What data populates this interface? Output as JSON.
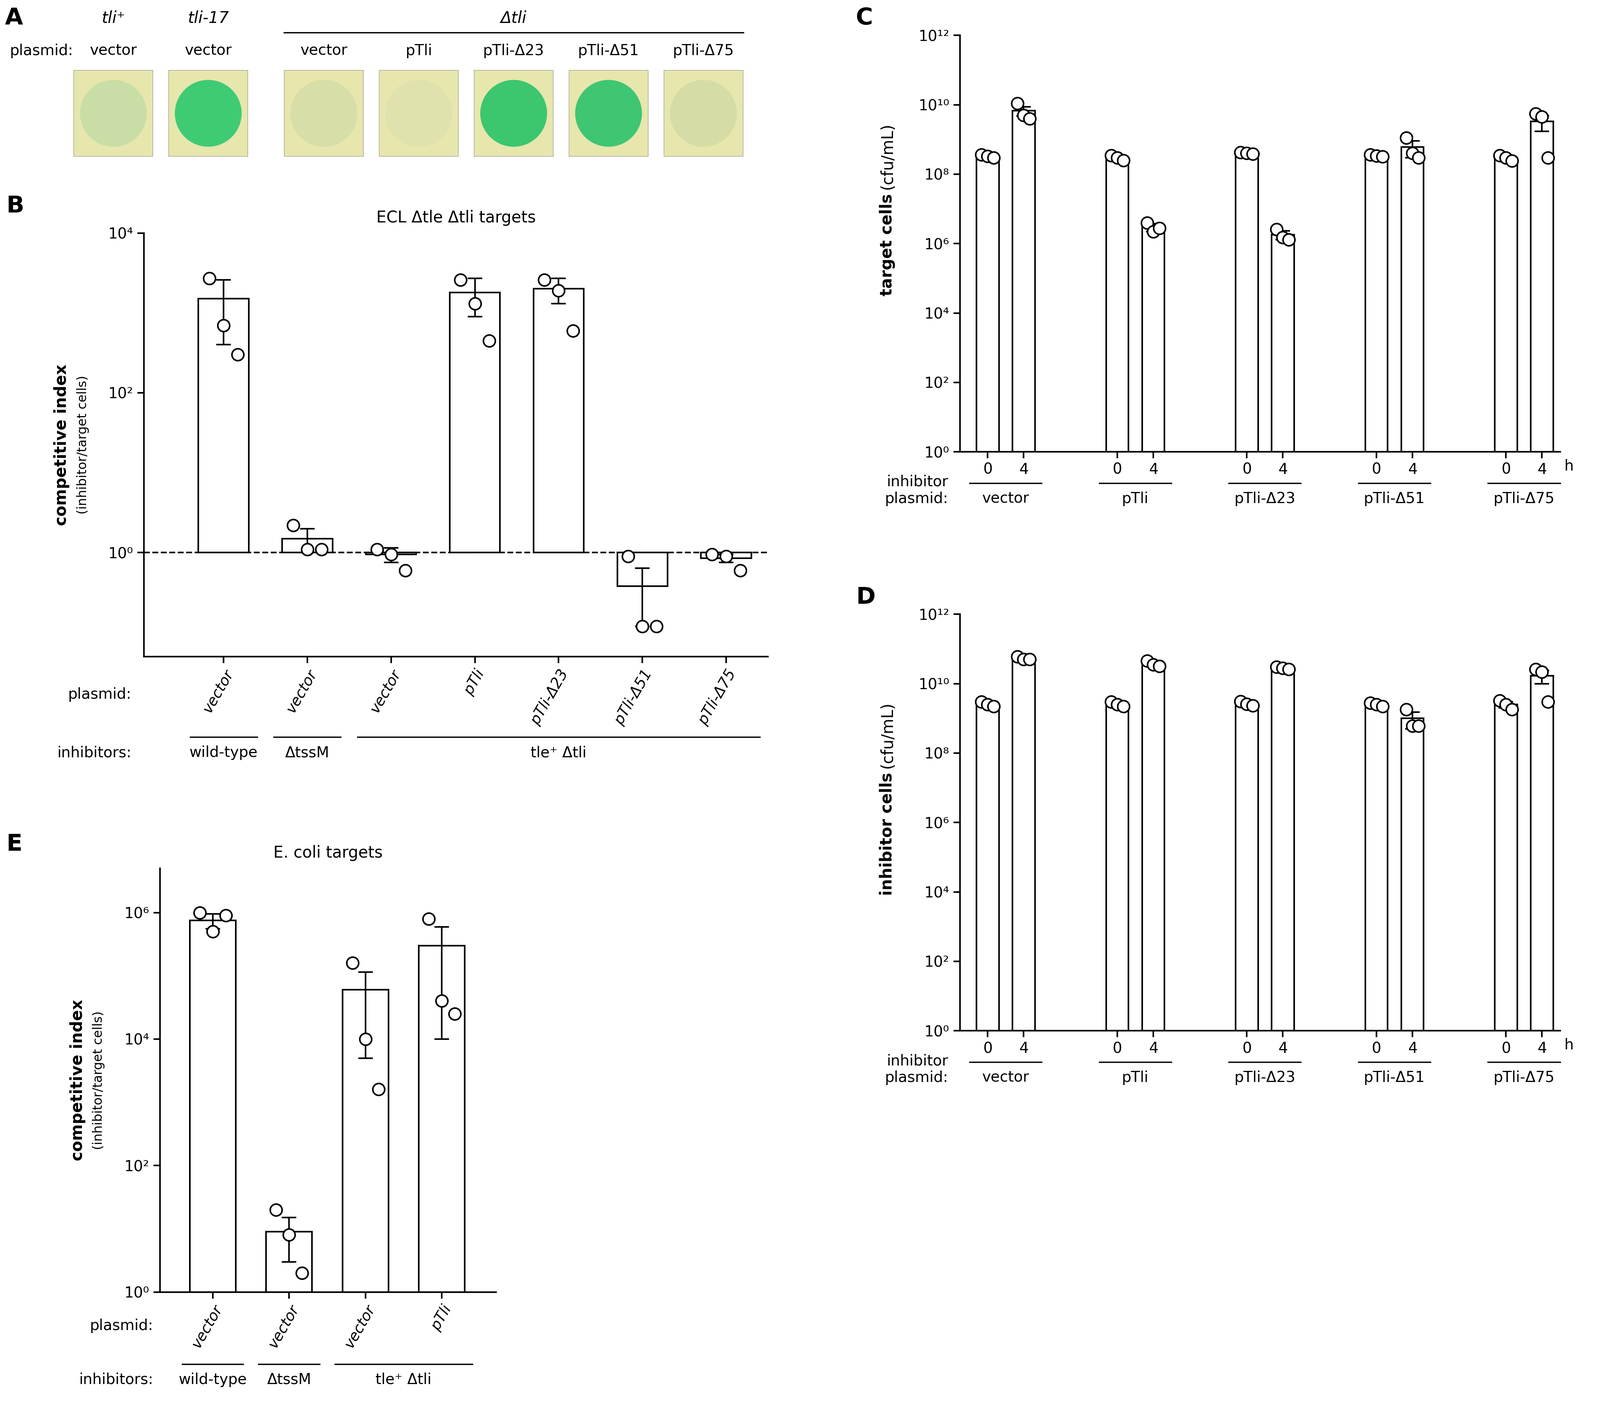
{
  "panel_a": {
    "panel": "A",
    "row_label": "plasmid:",
    "strains": [
      {
        "name": "tli⁺",
        "spots": [
          {
            "plasmid": "vector",
            "color": "#c9dea6"
          }
        ]
      },
      {
        "name": "tli-17",
        "spots": [
          {
            "plasmid": "vector",
            "color": "#3fcb74"
          }
        ]
      },
      {
        "name": "Δtli",
        "spots": [
          {
            "plasmid": "vector",
            "color": "#d7dea8"
          },
          {
            "plasmid": "pTli",
            "color": "#dfe2ad"
          },
          {
            "plasmid": "pTli-Δ23",
            "color": "#3cc66e"
          },
          {
            "plasmid": "pTli-Δ51",
            "color": "#3fc672"
          },
          {
            "plasmid": "pTli-Δ75",
            "color": "#d5dca5"
          }
        ]
      }
    ]
  },
  "chart_data": [
    {
      "type": "bar",
      "panel": "B",
      "title": "ECL Δtle Δtli targets",
      "y_label": "competitive index",
      "y_sublabel": "(inhibitor/target cells)",
      "log": "y",
      "ylim": [
        0.05,
        10000
      ],
      "yticks": [
        {
          "value": 1,
          "label": "10⁰"
        },
        {
          "value": 100,
          "label": "10²"
        },
        {
          "value": 10000,
          "label": "10⁴"
        }
      ],
      "baseline": 1,
      "line_style": "dashed",
      "color": "#ffffff",
      "category_row_label": "plasmid:",
      "group_row_label": "inhibitors:",
      "groups": [
        {
          "label": "wild-type",
          "categories": [
            "vector"
          ],
          "values": [
            1500
          ],
          "errors": [
            1100
          ],
          "points": [
            [
              2700,
              700,
              300
            ]
          ]
        },
        {
          "label": "ΔtssM",
          "categories": [
            "vector"
          ],
          "values": [
            1.5
          ],
          "errors": [
            0.5
          ],
          "points": [
            [
              2.2,
              1.1,
              1.1
            ]
          ]
        },
        {
          "label": "tle⁺ Δtli",
          "categories": [
            "vector",
            "pTli",
            "pTli-Δ23",
            "pTli-Δ51",
            "pTli-Δ75"
          ],
          "values": [
            0.95,
            1800,
            2000,
            0.38,
            0.85
          ],
          "errors": [
            0.2,
            900,
            700,
            0.26,
            0.1
          ],
          "points": [
            [
              1.1,
              0.95,
              0.6
            ],
            [
              2600,
              1300,
              450
            ],
            [
              2600,
              1900,
              600
            ],
            [
              0.9,
              0.12,
              0.12
            ],
            [
              0.95,
              0.9,
              0.6
            ]
          ]
        }
      ]
    },
    {
      "type": "bar",
      "panel": "C",
      "y_label": "target cells",
      "y_sublabel": "(cfu/mL)",
      "log": "y",
      "ylim": [
        1,
        1000000000000
      ],
      "yticks": [
        {
          "value": 1,
          "label": "10⁰"
        },
        {
          "value": 100,
          "label": "10²"
        },
        {
          "value": 10000,
          "label": "10⁴"
        },
        {
          "value": 1000000,
          "label": "10⁶"
        },
        {
          "value": 100000000,
          "label": "10⁸"
        },
        {
          "value": 10000000000,
          "label": "10¹⁰"
        },
        {
          "value": 1000000000000,
          "label": "10¹²"
        }
      ],
      "baseline": 1,
      "color": "#ffffff",
      "x_unit": "h",
      "category_row_label": "inhibitor\nplasmid:",
      "groups": [
        {
          "label": "vector",
          "categories": [
            "0",
            "4"
          ],
          "values": [
            330000000,
            6700000000
          ],
          "errors": [
            30000000,
            2000000000
          ],
          "points": [
            [
              360000000,
              330000000,
              300000000
            ],
            [
              11000000000,
              5000000000,
              4000000000
            ]
          ]
        },
        {
          "label": "pTli",
          "categories": [
            "0",
            "4"
          ],
          "values": [
            300000000,
            3000000
          ],
          "errors": [
            50000000,
            800000
          ],
          "points": [
            [
              350000000,
              300000000,
              250000000
            ],
            [
              4000000,
              2200000,
              2800000
            ]
          ]
        },
        {
          "label": "pTli-Δ23",
          "categories": [
            "0",
            "4"
          ],
          "values": [
            400000000,
            1800000
          ],
          "errors": [
            20000000,
            500000
          ],
          "points": [
            [
              420000000,
              400000000,
              380000000
            ],
            [
              2600000,
              1500000,
              1300000
            ]
          ]
        },
        {
          "label": "pTli-Δ51",
          "categories": [
            "0",
            "4"
          ],
          "values": [
            340000000,
            600000000
          ],
          "errors": [
            20000000,
            300000000
          ],
          "points": [
            [
              360000000,
              340000000,
              320000000
            ],
            [
              1100000000,
              400000000,
              300000000
            ]
          ]
        },
        {
          "label": "pTli-Δ75",
          "categories": [
            "0",
            "4"
          ],
          "values": [
            300000000,
            3300000000
          ],
          "errors": [
            40000000,
            1600000000
          ],
          "points": [
            [
              350000000,
              300000000,
              240000000
            ],
            [
              5500000000,
              4500000000,
              300000000
            ]
          ]
        }
      ]
    },
    {
      "type": "bar",
      "panel": "D",
      "y_label": "inhibitor cells",
      "y_sublabel": "(cfu/mL)",
      "log": "y",
      "ylim": [
        1,
        1000000000000
      ],
      "yticks": [
        {
          "value": 1,
          "label": "10⁰"
        },
        {
          "value": 100,
          "label": "10²"
        },
        {
          "value": 10000,
          "label": "10⁴"
        },
        {
          "value": 1000000,
          "label": "10⁶"
        },
        {
          "value": 100000000,
          "label": "10⁸"
        },
        {
          "value": 10000000000,
          "label": "10¹⁰"
        },
        {
          "value": 1000000000000,
          "label": "10¹²"
        }
      ],
      "baseline": 1,
      "color": "#ffffff",
      "x_unit": "h",
      "category_row_label": "inhibitor\nplasmid:",
      "groups": [
        {
          "label": "vector",
          "categories": [
            "0",
            "4"
          ],
          "values": [
            2600000000,
            53000000000
          ],
          "errors": [
            400000000,
            4000000000
          ],
          "points": [
            [
              3000000000,
              2500000000,
              2200000000
            ],
            [
              60000000000,
              50000000000,
              50000000000
            ]
          ]
        },
        {
          "label": "pTli",
          "categories": [
            "0",
            "4"
          ],
          "values": [
            2600000000,
            37000000000
          ],
          "errors": [
            400000000,
            5000000000
          ],
          "points": [
            [
              3000000000,
              2500000000,
              2200000000
            ],
            [
              45000000000,
              35000000000,
              32000000000
            ]
          ]
        },
        {
          "label": "pTli-Δ23",
          "categories": [
            "0",
            "4"
          ],
          "values": [
            2700000000,
            28000000000
          ],
          "errors": [
            400000000,
            2000000000
          ],
          "points": [
            [
              3100000000,
              2600000000,
              2300000000
            ],
            [
              30000000000,
              28000000000,
              26000000000
            ]
          ]
        },
        {
          "label": "pTli-Δ51",
          "categories": [
            "0",
            "4"
          ],
          "values": [
            2500000000,
            1000000000
          ],
          "errors": [
            300000000,
            500000000
          ],
          "points": [
            [
              2800000000,
              2500000000,
              2200000000
            ],
            [
              1800000000,
              600000000,
              600000000
            ]
          ]
        },
        {
          "label": "pTli-Δ75",
          "categories": [
            "0",
            "4"
          ],
          "values": [
            2500000000,
            17000000000
          ],
          "errors": [
            500000000,
            7000000000
          ],
          "points": [
            [
              3200000000,
              2500000000,
              1800000000
            ],
            [
              26000000000,
              22000000000,
              3000000000
            ]
          ]
        }
      ]
    },
    {
      "type": "bar",
      "panel": "E",
      "title": "E. coli targets",
      "y_label": "competitive index",
      "y_sublabel": "(inhibitor/target cells)",
      "log": "y",
      "ylim": [
        1,
        5000000
      ],
      "yticks": [
        {
          "value": 1,
          "label": "10⁰"
        },
        {
          "value": 100,
          "label": "10²"
        },
        {
          "value": 10000,
          "label": "10⁴"
        },
        {
          "value": 1000000,
          "label": "10⁶"
        }
      ],
      "baseline": 1,
      "color": "#ffffff",
      "category_row_label": "plasmid:",
      "group_row_label": "inhibitors:",
      "groups": [
        {
          "label": "wild-type",
          "categories": [
            "vector"
          ],
          "values": [
            750000
          ],
          "errors": [
            200000
          ],
          "points": [
            [
              1000000,
              500000,
              900000
            ]
          ]
        },
        {
          "label": "ΔtssM",
          "categories": [
            "vector"
          ],
          "values": [
            9
          ],
          "errors": [
            6
          ],
          "points": [
            [
              20,
              8,
              2
            ]
          ]
        },
        {
          "label": "tle⁺ Δtli",
          "categories": [
            "vector",
            "pTli"
          ],
          "values": [
            60000,
            300000
          ],
          "errors": [
            55000,
            290000
          ],
          "points": [
            [
              160000,
              10000,
              1600
            ],
            [
              800000,
              40000,
              25000
            ]
          ]
        }
      ]
    }
  ]
}
